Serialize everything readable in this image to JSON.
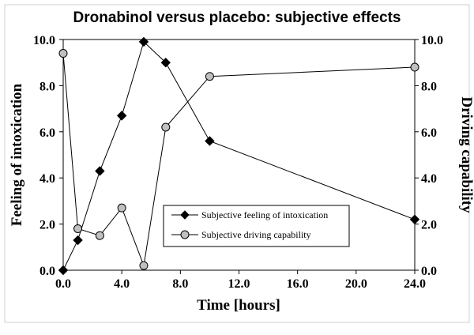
{
  "chart_data": {
    "type": "line",
    "title": "Dronabinol versus placebo: subjective effects",
    "xlabel": "Time [hours]",
    "ylabel": "Feeling of intoxication",
    "y2label": "Driving capability",
    "xlim": [
      0,
      24
    ],
    "ylim": [
      0,
      10
    ],
    "y2lim": [
      0,
      10
    ],
    "xticks": [
      "0.0",
      "4.0",
      "8.0",
      "12.0",
      "16.0",
      "20.0",
      "24.0"
    ],
    "yticks": [
      "0.0",
      "2.0",
      "4.0",
      "6.0",
      "8.0",
      "10.0"
    ],
    "y2ticks": [
      "0.0",
      "2.0",
      "4.0",
      "6.0",
      "8.0",
      "10.0"
    ],
    "grid": false,
    "legend_position": "center-right",
    "series": [
      {
        "name": "Subjective feeling of intoxication",
        "marker": "diamond",
        "marker_color": "#000000",
        "axis": "left",
        "x": [
          0,
          1,
          2.5,
          4,
          5.5,
          7,
          10,
          24
        ],
        "y": [
          0.0,
          1.3,
          4.3,
          6.7,
          9.9,
          9.0,
          5.6,
          2.2
        ]
      },
      {
        "name": "Subjective driving capability",
        "marker": "circle",
        "marker_color": "#c0c0c0",
        "axis": "right",
        "x": [
          0,
          1,
          2.5,
          4,
          5.5,
          7,
          10,
          24
        ],
        "y": [
          9.4,
          1.8,
          1.5,
          2.7,
          0.2,
          6.2,
          8.4,
          8.8
        ]
      }
    ]
  }
}
